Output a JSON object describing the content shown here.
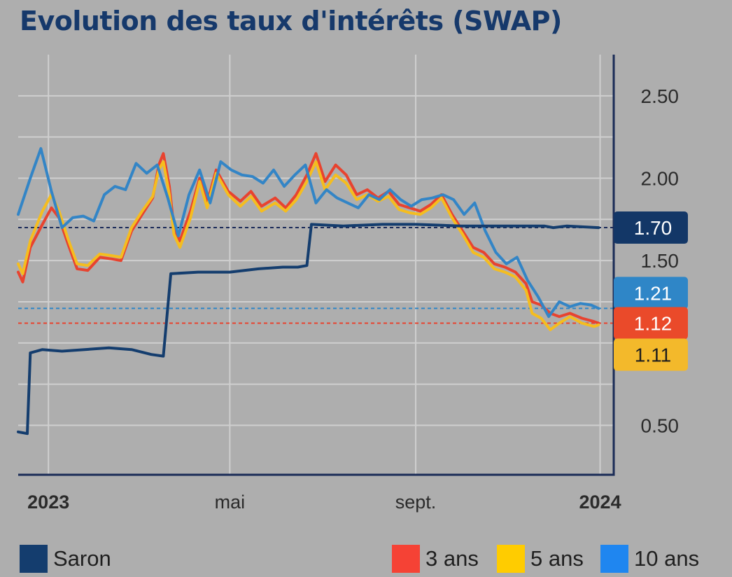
{
  "title": "Evolution des taux d'intérêts (SWAP)",
  "colors": {
    "saron": "#143d6e",
    "y3": "#e8432f",
    "y5": "#f5bd1f",
    "y10": "#3385c6",
    "axis": "#1b2c57",
    "grid": "#cfcfcf",
    "background": "#aeaeae"
  },
  "chart_data": {
    "type": "line",
    "title": "Evolution des taux d'intérêts (SWAP)",
    "xlim": [
      "2022-12-12",
      "2024-01-10"
    ],
    "ylim": [
      0.2,
      2.75
    ],
    "y_axis_position": "right",
    "grid": true,
    "legend_position": "bottom",
    "y_ticks": [
      "0.50",
      "1.50",
      "2.00",
      "2.50"
    ],
    "x_ticks": [
      {
        "date": "2023-01-01",
        "label": "2023",
        "bold": true
      },
      {
        "date": "2023-05-01",
        "label": "mai",
        "bold": false
      },
      {
        "date": "2023-09-01",
        "label": "sept.",
        "bold": false
      },
      {
        "date": "2024-01-01",
        "label": "2024",
        "bold": true
      }
    ],
    "end_labels": [
      {
        "series": "Saron",
        "value": 1.7,
        "label": "1.70"
      },
      {
        "series": "10 ans",
        "value": 1.21,
        "label": "1.21"
      },
      {
        "series": "3 ans",
        "value": 1.12,
        "label": "1.12"
      },
      {
        "series": "5 ans",
        "value": 1.11,
        "label": "1.11"
      }
    ],
    "series": [
      {
        "name": "Saron",
        "color": "#143d6e",
        "points": [
          [
            "2022-12-12",
            0.46
          ],
          [
            "2022-12-18",
            0.45
          ],
          [
            "2022-12-20",
            0.94
          ],
          [
            "2022-12-28",
            0.96
          ],
          [
            "2023-01-10",
            0.95
          ],
          [
            "2023-01-25",
            0.96
          ],
          [
            "2023-02-10",
            0.97
          ],
          [
            "2023-02-25",
            0.96
          ],
          [
            "2023-03-10",
            0.93
          ],
          [
            "2023-03-18",
            0.92
          ],
          [
            "2023-03-23",
            1.42
          ],
          [
            "2023-04-10",
            1.43
          ],
          [
            "2023-05-01",
            1.43
          ],
          [
            "2023-05-20",
            1.45
          ],
          [
            "2023-06-05",
            1.46
          ],
          [
            "2023-06-15",
            1.46
          ],
          [
            "2023-06-21",
            1.47
          ],
          [
            "2023-06-24",
            1.72
          ],
          [
            "2023-07-15",
            1.71
          ],
          [
            "2023-08-10",
            1.72
          ],
          [
            "2023-09-01",
            1.72
          ],
          [
            "2023-10-01",
            1.71
          ],
          [
            "2023-11-01",
            1.71
          ],
          [
            "2023-11-25",
            1.71
          ],
          [
            "2023-12-01",
            1.7
          ],
          [
            "2023-12-10",
            1.71
          ],
          [
            "2023-12-31",
            1.7
          ]
        ]
      },
      {
        "name": "3 ans",
        "color": "#e8432f",
        "points": [
          [
            "2022-12-12",
            1.43
          ],
          [
            "2022-12-15",
            1.37
          ],
          [
            "2022-12-20",
            1.58
          ],
          [
            "2022-12-28",
            1.72
          ],
          [
            "2023-01-03",
            1.82
          ],
          [
            "2023-01-08",
            1.76
          ],
          [
            "2023-01-14",
            1.6
          ],
          [
            "2023-01-20",
            1.45
          ],
          [
            "2023-01-27",
            1.44
          ],
          [
            "2023-02-04",
            1.52
          ],
          [
            "2023-02-12",
            1.51
          ],
          [
            "2023-02-18",
            1.5
          ],
          [
            "2023-02-25",
            1.68
          ],
          [
            "2023-03-04",
            1.78
          ],
          [
            "2023-03-11",
            1.88
          ],
          [
            "2023-03-15",
            2.08
          ],
          [
            "2023-03-18",
            2.15
          ],
          [
            "2023-03-22",
            1.95
          ],
          [
            "2023-03-25",
            1.7
          ],
          [
            "2023-03-29",
            1.62
          ],
          [
            "2023-04-05",
            1.8
          ],
          [
            "2023-04-11",
            2.0
          ],
          [
            "2023-04-16",
            1.85
          ],
          [
            "2023-04-22",
            2.05
          ],
          [
            "2023-04-30",
            1.92
          ],
          [
            "2023-05-08",
            1.86
          ],
          [
            "2023-05-15",
            1.92
          ],
          [
            "2023-05-22",
            1.83
          ],
          [
            "2023-05-31",
            1.88
          ],
          [
            "2023-06-07",
            1.82
          ],
          [
            "2023-06-14",
            1.9
          ],
          [
            "2023-06-21",
            2.02
          ],
          [
            "2023-06-27",
            2.15
          ],
          [
            "2023-07-03",
            1.98
          ],
          [
            "2023-07-10",
            2.08
          ],
          [
            "2023-07-17",
            2.02
          ],
          [
            "2023-07-24",
            1.9
          ],
          [
            "2023-07-31",
            1.93
          ],
          [
            "2023-08-07",
            1.88
          ],
          [
            "2023-08-14",
            1.92
          ],
          [
            "2023-08-21",
            1.84
          ],
          [
            "2023-08-28",
            1.82
          ],
          [
            "2023-09-04",
            1.8
          ],
          [
            "2023-09-11",
            1.84
          ],
          [
            "2023-09-18",
            1.9
          ],
          [
            "2023-09-25",
            1.78
          ],
          [
            "2023-10-02",
            1.68
          ],
          [
            "2023-10-09",
            1.58
          ],
          [
            "2023-10-16",
            1.55
          ],
          [
            "2023-10-23",
            1.48
          ],
          [
            "2023-10-30",
            1.46
          ],
          [
            "2023-11-06",
            1.43
          ],
          [
            "2023-11-13",
            1.36
          ],
          [
            "2023-11-17",
            1.25
          ],
          [
            "2023-11-23",
            1.23
          ],
          [
            "2023-11-29",
            1.18
          ],
          [
            "2023-12-05",
            1.16
          ],
          [
            "2023-12-12",
            1.18
          ],
          [
            "2023-12-20",
            1.15
          ],
          [
            "2023-12-28",
            1.13
          ],
          [
            "2023-12-31",
            1.12
          ]
        ]
      },
      {
        "name": "5 ans",
        "color": "#f5bd1f",
        "points": [
          [
            "2022-12-12",
            1.48
          ],
          [
            "2022-12-15",
            1.42
          ],
          [
            "2022-12-20",
            1.62
          ],
          [
            "2022-12-28",
            1.8
          ],
          [
            "2023-01-03",
            1.9
          ],
          [
            "2023-01-08",
            1.8
          ],
          [
            "2023-01-14",
            1.63
          ],
          [
            "2023-01-20",
            1.48
          ],
          [
            "2023-01-27",
            1.47
          ],
          [
            "2023-02-04",
            1.54
          ],
          [
            "2023-02-12",
            1.53
          ],
          [
            "2023-02-18",
            1.52
          ],
          [
            "2023-02-25",
            1.7
          ],
          [
            "2023-03-04",
            1.8
          ],
          [
            "2023-03-11",
            1.89
          ],
          [
            "2023-03-15",
            2.05
          ],
          [
            "2023-03-18",
            2.1
          ],
          [
            "2023-03-22",
            1.9
          ],
          [
            "2023-03-25",
            1.66
          ],
          [
            "2023-03-29",
            1.58
          ],
          [
            "2023-04-05",
            1.76
          ],
          [
            "2023-04-11",
            1.98
          ],
          [
            "2023-04-16",
            1.82
          ],
          [
            "2023-04-22",
            2.03
          ],
          [
            "2023-04-30",
            1.9
          ],
          [
            "2023-05-08",
            1.83
          ],
          [
            "2023-05-15",
            1.89
          ],
          [
            "2023-05-22",
            1.8
          ],
          [
            "2023-05-31",
            1.85
          ],
          [
            "2023-06-07",
            1.8
          ],
          [
            "2023-06-14",
            1.87
          ],
          [
            "2023-06-21",
            1.98
          ],
          [
            "2023-06-27",
            2.1
          ],
          [
            "2023-07-03",
            1.93
          ],
          [
            "2023-07-10",
            2.02
          ],
          [
            "2023-07-17",
            1.97
          ],
          [
            "2023-07-24",
            1.87
          ],
          [
            "2023-07-31",
            1.9
          ],
          [
            "2023-08-07",
            1.86
          ],
          [
            "2023-08-14",
            1.89
          ],
          [
            "2023-08-21",
            1.81
          ],
          [
            "2023-08-28",
            1.79
          ],
          [
            "2023-09-04",
            1.78
          ],
          [
            "2023-09-11",
            1.82
          ],
          [
            "2023-09-18",
            1.88
          ],
          [
            "2023-09-25",
            1.76
          ],
          [
            "2023-10-02",
            1.66
          ],
          [
            "2023-10-09",
            1.55
          ],
          [
            "2023-10-16",
            1.52
          ],
          [
            "2023-10-23",
            1.45
          ],
          [
            "2023-10-30",
            1.43
          ],
          [
            "2023-11-06",
            1.4
          ],
          [
            "2023-11-13",
            1.32
          ],
          [
            "2023-11-17",
            1.18
          ],
          [
            "2023-11-23",
            1.15
          ],
          [
            "2023-11-29",
            1.08
          ],
          [
            "2023-12-05",
            1.12
          ],
          [
            "2023-12-12",
            1.16
          ],
          [
            "2023-12-20",
            1.12
          ],
          [
            "2023-12-28",
            1.1
          ],
          [
            "2023-12-31",
            1.11
          ]
        ]
      },
      {
        "name": "10 ans",
        "color": "#3385c6",
        "points": [
          [
            "2022-12-12",
            1.78
          ],
          [
            "2022-12-20",
            2.0
          ],
          [
            "2022-12-27",
            2.18
          ],
          [
            "2023-01-03",
            1.92
          ],
          [
            "2023-01-10",
            1.7
          ],
          [
            "2023-01-17",
            1.76
          ],
          [
            "2023-01-24",
            1.77
          ],
          [
            "2023-01-31",
            1.74
          ],
          [
            "2023-02-07",
            1.9
          ],
          [
            "2023-02-14",
            1.95
          ],
          [
            "2023-02-21",
            1.93
          ],
          [
            "2023-02-28",
            2.09
          ],
          [
            "2023-03-07",
            2.03
          ],
          [
            "2023-03-14",
            2.08
          ],
          [
            "2023-03-21",
            1.88
          ],
          [
            "2023-03-28",
            1.65
          ],
          [
            "2023-04-04",
            1.9
          ],
          [
            "2023-04-11",
            2.05
          ],
          [
            "2023-04-18",
            1.85
          ],
          [
            "2023-04-25",
            2.1
          ],
          [
            "2023-05-02",
            2.05
          ],
          [
            "2023-05-09",
            2.02
          ],
          [
            "2023-05-16",
            2.01
          ],
          [
            "2023-05-23",
            1.97
          ],
          [
            "2023-05-30",
            2.05
          ],
          [
            "2023-06-06",
            1.95
          ],
          [
            "2023-06-13",
            2.02
          ],
          [
            "2023-06-20",
            2.08
          ],
          [
            "2023-06-27",
            1.85
          ],
          [
            "2023-07-04",
            1.93
          ],
          [
            "2023-07-11",
            1.88
          ],
          [
            "2023-07-18",
            1.85
          ],
          [
            "2023-07-25",
            1.82
          ],
          [
            "2023-08-01",
            1.9
          ],
          [
            "2023-08-08",
            1.87
          ],
          [
            "2023-08-15",
            1.93
          ],
          [
            "2023-08-22",
            1.87
          ],
          [
            "2023-08-29",
            1.83
          ],
          [
            "2023-09-05",
            1.87
          ],
          [
            "2023-09-12",
            1.88
          ],
          [
            "2023-09-19",
            1.9
          ],
          [
            "2023-09-26",
            1.87
          ],
          [
            "2023-10-03",
            1.78
          ],
          [
            "2023-10-10",
            1.85
          ],
          [
            "2023-10-17",
            1.68
          ],
          [
            "2023-10-24",
            1.55
          ],
          [
            "2023-10-31",
            1.48
          ],
          [
            "2023-11-07",
            1.52
          ],
          [
            "2023-11-14",
            1.38
          ],
          [
            "2023-11-21",
            1.28
          ],
          [
            "2023-11-28",
            1.16
          ],
          [
            "2023-12-05",
            1.25
          ],
          [
            "2023-12-12",
            1.22
          ],
          [
            "2023-12-19",
            1.24
          ],
          [
            "2023-12-26",
            1.23
          ],
          [
            "2023-12-31",
            1.21
          ]
        ]
      }
    ]
  },
  "legend": {
    "saron": "Saron",
    "y3": "3 ans",
    "y5": "5 ans",
    "y10": "10 ans"
  }
}
